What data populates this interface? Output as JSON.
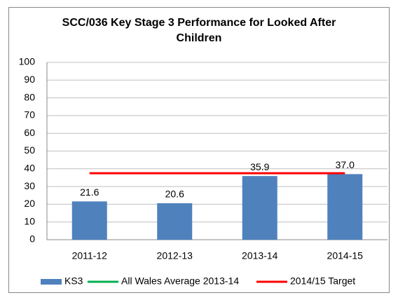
{
  "chart_data": {
    "type": "bar",
    "title": "SCC/036 Key Stage 3 Performance for Looked After Children",
    "categories": [
      "2011-12",
      "2012-13",
      "2013-14",
      "2014-15"
    ],
    "series": [
      {
        "name": "KS3",
        "type": "bar",
        "color": "#4f81bd",
        "values": [
          21.6,
          20.6,
          35.9,
          37.0
        ],
        "value_labels": [
          "21.6",
          "20.6",
          "35.9",
          "37.0"
        ]
      },
      {
        "name": "All Wales Average 2013-14",
        "type": "line",
        "color": "#00b050",
        "values": [
          null,
          null,
          null,
          null
        ]
      },
      {
        "name": "2014/15 Target",
        "type": "line",
        "color": "#ff0000",
        "values": [
          37.5,
          37.5,
          37.5,
          37.5
        ]
      }
    ],
    "ylim": [
      0,
      100
    ],
    "yticks": [
      0,
      10,
      20,
      30,
      40,
      50,
      60,
      70,
      80,
      90,
      100
    ],
    "grid": true,
    "legend": "bottom"
  }
}
